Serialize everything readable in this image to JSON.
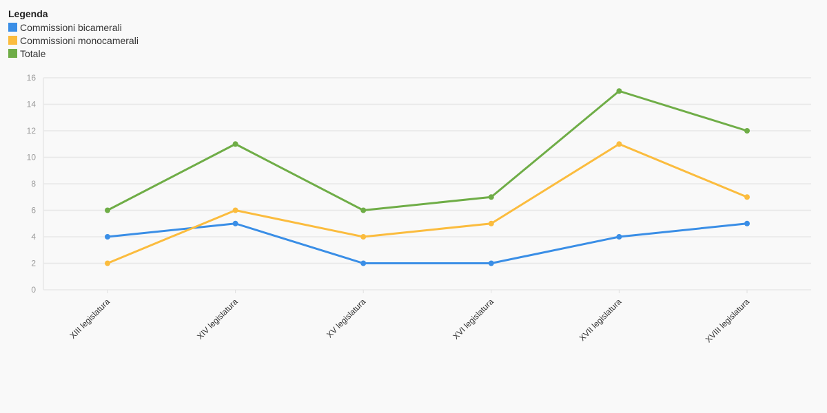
{
  "legend": {
    "title": "Legenda"
  },
  "chart_data": {
    "type": "line",
    "categories": [
      "XIII legislatura",
      "XIV legislatura",
      "XV legislatura",
      "XVI legislatura",
      "XVII legislatura",
      "XVIII legislatura"
    ],
    "series": [
      {
        "name": "Commissioni bicamerali",
        "color": "#3a8ee6",
        "values": [
          4,
          5,
          2,
          2,
          4,
          5
        ]
      },
      {
        "name": "Commissioni monocamerali",
        "color": "#fbbc3e",
        "values": [
          2,
          6,
          4,
          5,
          11,
          7
        ]
      },
      {
        "name": "Totale",
        "color": "#6fad47",
        "values": [
          6,
          11,
          6,
          7,
          15,
          12
        ]
      }
    ],
    "yticks": [
      0,
      2,
      4,
      6,
      8,
      10,
      12,
      14,
      16
    ],
    "ylim": [
      0,
      16
    ],
    "grid": true,
    "legend_position": "top-left"
  }
}
